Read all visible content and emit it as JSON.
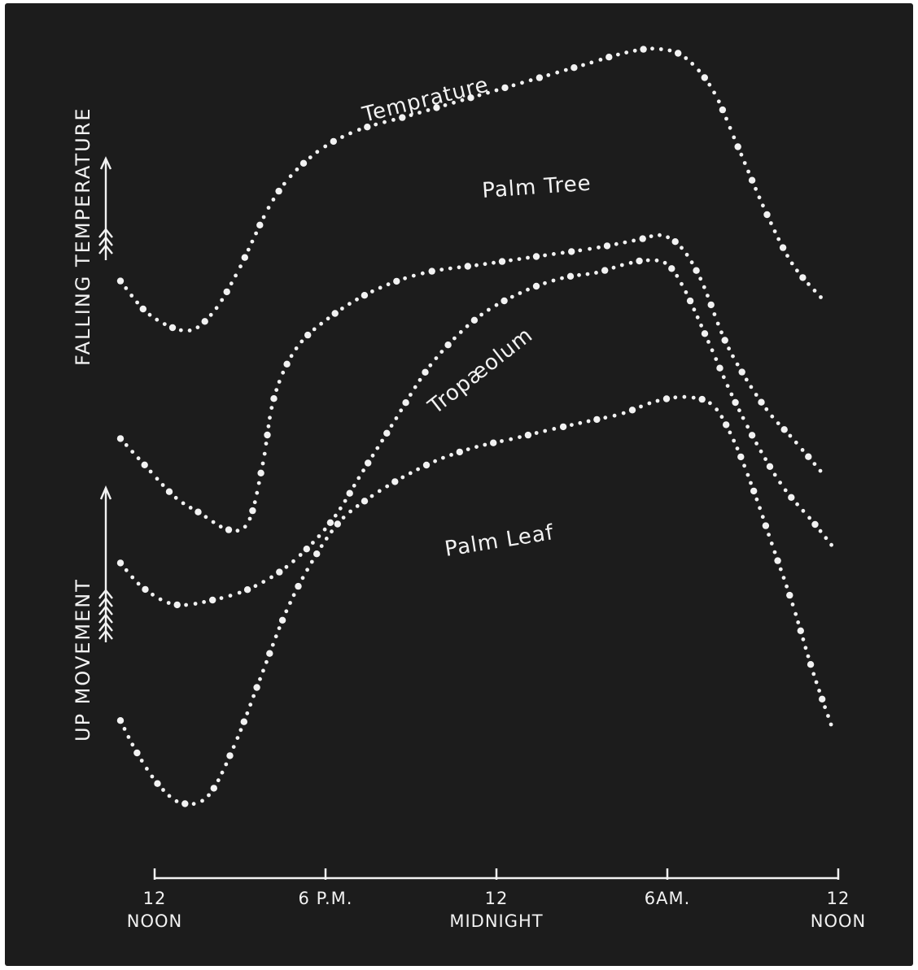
{
  "chart_data": {
    "type": "line",
    "title": "",
    "xlabel": "",
    "ylabel": "",
    "y_axis_annotations": [
      "FALLING TEMPERATURE",
      "UP MOVEMENT"
    ],
    "x_ticks": [
      {
        "value": 0,
        "line1": "12",
        "line2": "NOON"
      },
      {
        "value": 6,
        "line1": "6 P.M.",
        "line2": ""
      },
      {
        "value": 12,
        "line1": "12",
        "line2": "MIDNIGHT"
      },
      {
        "value": 18,
        "line1": "6AM.",
        "line2": ""
      },
      {
        "value": 24,
        "line1": "12",
        "line2": "NOON"
      }
    ],
    "xlim": [
      0,
      24
    ],
    "ylim": [
      0,
      100
    ],
    "grid": false,
    "legend": "labels on curves",
    "colors": {
      "background": "#1c1c1c",
      "ink": "#f2f2f2",
      "plate": "#ffffff"
    },
    "series": [
      {
        "name": "Temprature",
        "x": [
          -1.2,
          -0.2,
          1.1,
          2.0,
          2.9,
          4.2,
          5.5,
          7.0,
          9.0,
          11.0,
          13.0,
          15.0,
          16.5,
          17.6,
          18.6,
          19.6,
          20.5,
          21.5,
          22.4,
          23.4
        ],
        "y": [
          72,
          68,
          66,
          68,
          73,
          82,
          87,
          90,
          92,
          94,
          96,
          98,
          99.5,
          100,
          99,
          95,
          88,
          80,
          74,
          70
        ]
      },
      {
        "name": "Palm Tree",
        "x": [
          -1.2,
          -0.4,
          0.7,
          1.6,
          2.6,
          3.3,
          3.8,
          4.2,
          5.0,
          6.3,
          7.8,
          9.5,
          11.5,
          13.5,
          15.5,
          17.0,
          17.8,
          18.5,
          19.2,
          20.0,
          20.8,
          21.6,
          22.4,
          23.4
        ],
        "y": [
          53,
          50,
          46,
          44,
          42,
          43,
          50,
          58,
          64,
          68,
          71,
          73,
          74,
          75,
          76,
          77,
          77.5,
          76,
          72,
          65,
          60,
          56,
          53,
          49
        ]
      },
      {
        "name": "Tropæolum",
        "x": [
          -1.2,
          -0.4,
          0.7,
          2.0,
          3.4,
          4.8,
          6.2,
          7.3,
          8.4,
          9.5,
          10.5,
          11.5,
          12.5,
          13.5,
          14.5,
          15.5,
          16.5,
          17.3,
          18.0,
          18.6,
          19.4,
          20.3,
          21.2,
          22.1,
          23.1,
          23.8
        ],
        "y": [
          38,
          35,
          33,
          33.5,
          35,
          38,
          43,
          49,
          55,
          61,
          65,
          68,
          70,
          71.5,
          72.5,
          73,
          74,
          74.5,
          74,
          71,
          65,
          58,
          52,
          47,
          43,
          40
        ]
      },
      {
        "name": "Palm Leaf",
        "x": [
          -1.2,
          -0.6,
          0.2,
          1.0,
          1.9,
          2.8,
          3.7,
          4.6,
          5.5,
          6.5,
          7.6,
          8.8,
          10.0,
          11.3,
          12.6,
          13.8,
          15.1,
          16.4,
          17.6,
          18.7,
          19.6,
          20.3,
          21.0,
          21.7,
          22.4,
          23.1,
          23.8
        ],
        "y": [
          19,
          15,
          11,
          9,
          10,
          16,
          24,
          32,
          38,
          43,
          46,
          48.5,
          50.5,
          52,
          53,
          54,
          55,
          56,
          57.5,
          58,
          57,
          53,
          47,
          40,
          33,
          25,
          18
        ]
      }
    ]
  }
}
